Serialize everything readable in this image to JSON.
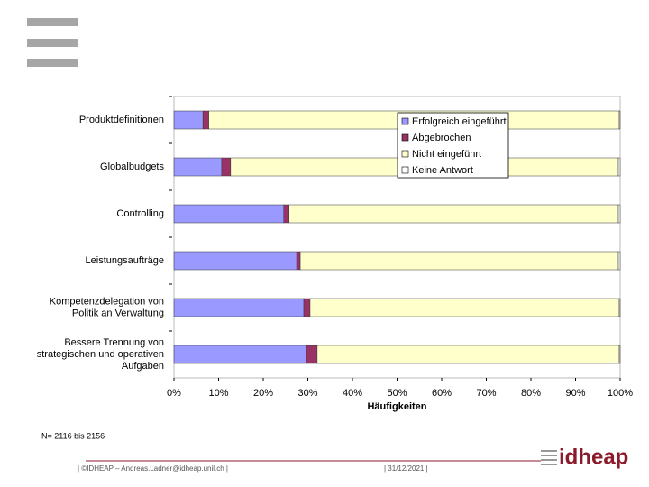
{
  "chart_data": {
    "type": "stacked-barh",
    "categories": [
      "Produktdefinitionen",
      "Globalbudgets",
      "Controlling",
      "Leistungsaufträge",
      "Kompetenzdelegation von\nPolitik an Verwaltung",
      "Bessere Trennung von\nstrategischen und operativen\nAufgaben"
    ],
    "series": [
      {
        "name": "Erfolgreich eingeführt",
        "color": "#9999ff",
        "values": [
          6.5,
          10.7,
          24.6,
          27.5,
          29.1,
          29.7
        ]
      },
      {
        "name": "Abgebrochen",
        "color": "#993366",
        "values": [
          1.3,
          2,
          1.2,
          0.8,
          1.4,
          2.4
        ]
      },
      {
        "name": "Nicht eingeführt",
        "color": "#ffffcc",
        "values": [
          92,
          86.9,
          73.8,
          71.3,
          69.3,
          67.7
        ]
      },
      {
        "name": "Keine Antwort",
        "color": "#ffffff",
        "values": [
          0.2,
          0.4,
          0.4,
          0.4,
          0.2,
          0.2
        ]
      }
    ],
    "xlabel": "Häufigkeiten",
    "xlim": [
      0,
      100
    ],
    "xticks": [
      {
        "value": 0,
        "label": "0%"
      },
      {
        "value": 10,
        "label": "10%"
      },
      {
        "value": 20,
        "label": "20%"
      },
      {
        "value": 30,
        "label": "30%"
      },
      {
        "value": 40,
        "label": "40%"
      },
      {
        "value": 50,
        "label": "50%"
      },
      {
        "value": 60,
        "label": "60%"
      },
      {
        "value": 70,
        "label": "70%"
      },
      {
        "value": 80,
        "label": "80%"
      },
      {
        "value": 90,
        "label": "90%"
      },
      {
        "value": 100,
        "label": "100%"
      }
    ],
    "legend": "upper right",
    "note": "N= 2116 bis 2156"
  },
  "footer": {
    "credit": "| ©IDHEAP – Andreas.Ladner@idheap.unil.ch |",
    "date": "| 31/12/2021 |",
    "logo": "idheap"
  }
}
